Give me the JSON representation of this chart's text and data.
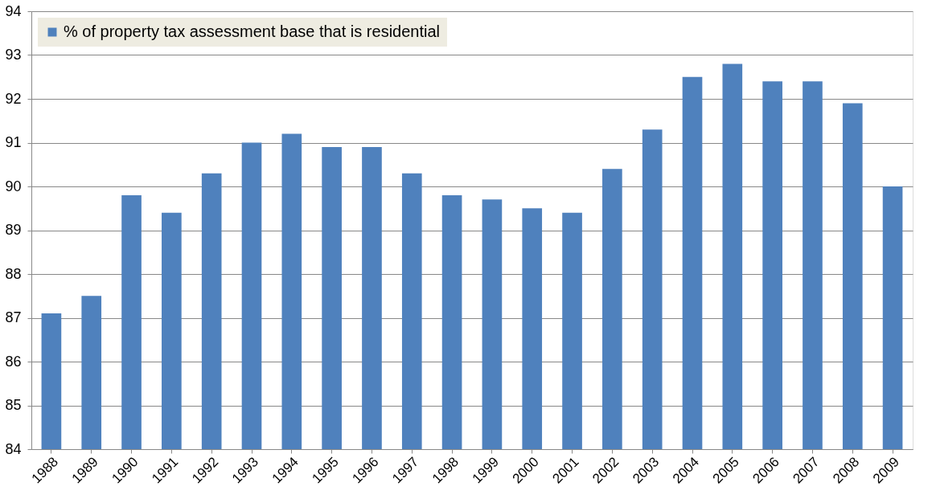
{
  "chart_data": {
    "type": "bar",
    "categories": [
      "1988",
      "1989",
      "1990",
      "1991",
      "1992",
      "1993",
      "1994",
      "1995",
      "1996",
      "1997",
      "1998",
      "1999",
      "2000",
      "2001",
      "2002",
      "2003",
      "2004",
      "2005",
      "2006",
      "2007",
      "2008",
      "2009"
    ],
    "series": [
      {
        "name": "% of property tax assessment base that is residential",
        "color": "#4f81bd",
        "values": [
          87.1,
          87.5,
          89.8,
          89.4,
          90.3,
          91.0,
          91.2,
          90.9,
          90.9,
          90.3,
          89.8,
          89.7,
          89.5,
          89.4,
          90.4,
          91.3,
          92.5,
          92.8,
          92.4,
          92.4,
          91.9,
          90.0
        ]
      }
    ],
    "ylim": [
      84,
      94
    ],
    "yticks": [
      84,
      85,
      86,
      87,
      88,
      89,
      90,
      91,
      92,
      93,
      94
    ],
    "grid": "y",
    "legend": "top left"
  }
}
